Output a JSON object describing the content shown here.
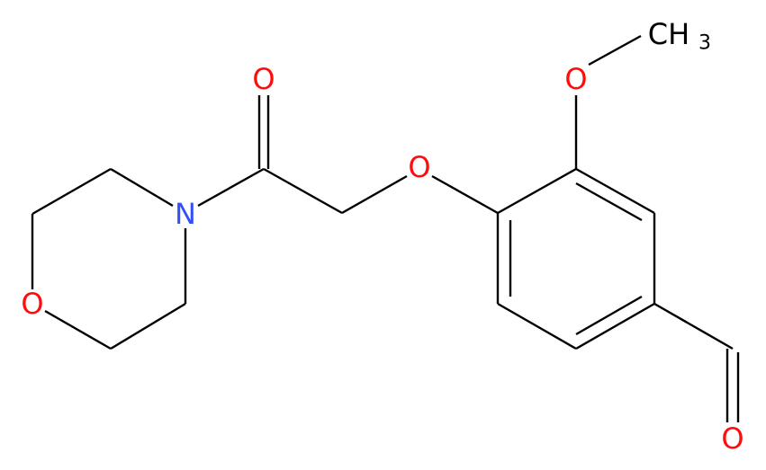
{
  "atoms": [
    {
      "label": "O"
    },
    {
      "label": "N"
    },
    {
      "label": "O"
    },
    {
      "label": "O"
    },
    {
      "label": "O"
    },
    {
      "label": "CH",
      "subscript": "3"
    },
    {
      "label": "O"
    }
  ]
}
